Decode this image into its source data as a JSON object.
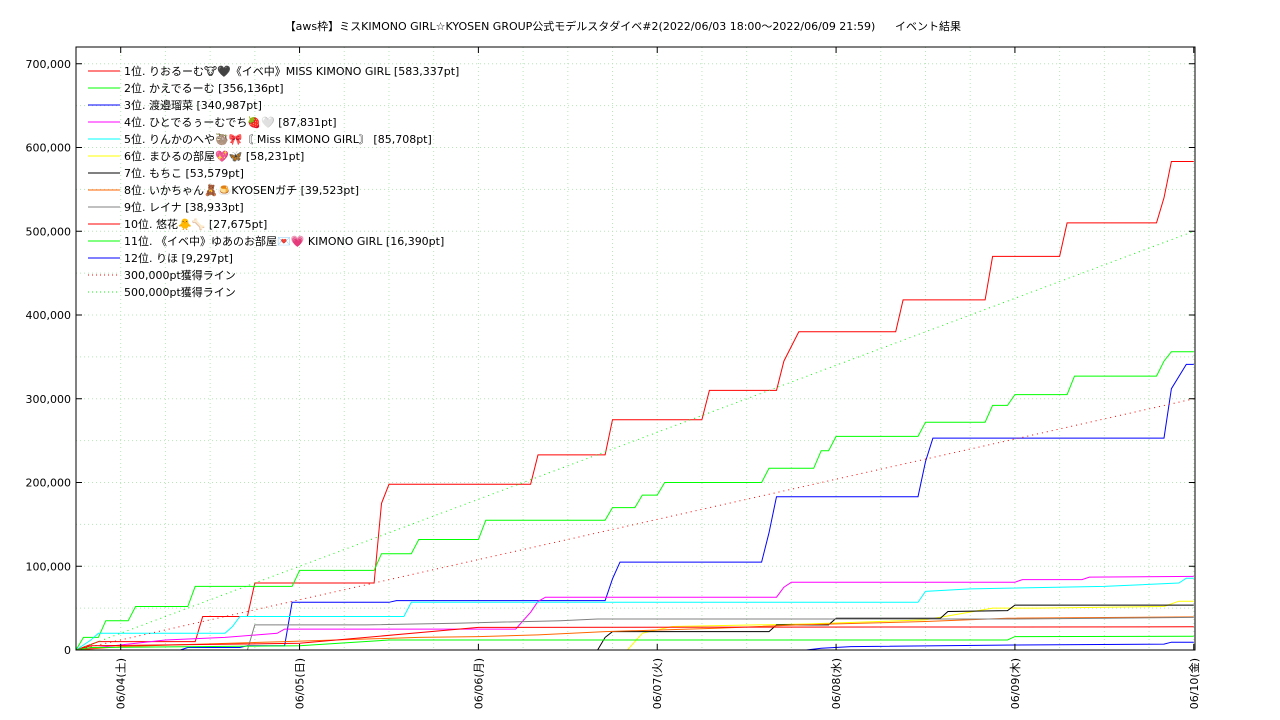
{
  "chart_data": {
    "type": "line",
    "title": "【aws枠】ミスKIMONO GIRL☆KYOSEN GROUP公式モデルスタダイベ#2(2022/06/03 18:00〜2022/06/09 21:59)",
    "subtitle": "イベント結果",
    "xlabel": "",
    "ylabel": "",
    "ylim": [
      0,
      720000
    ],
    "xlim": [
      "2022-06-03 18:00",
      "2022-06-10 00:10"
    ],
    "grid": true,
    "legend_position": "top-left",
    "y_ticks": [
      {
        "value": 0,
        "label": "0"
      },
      {
        "value": 100000,
        "label": "100,000"
      },
      {
        "value": 200000,
        "label": "200,000"
      },
      {
        "value": 300000,
        "label": "300,000"
      },
      {
        "value": 400000,
        "label": "400,000"
      },
      {
        "value": 500000,
        "label": "500,000"
      },
      {
        "value": 600000,
        "label": "600,000"
      },
      {
        "value": 700000,
        "label": "700,000"
      }
    ],
    "x_ticks": [
      {
        "value": "2022-06-04 00:00",
        "label": "06/04(土)"
      },
      {
        "value": "2022-06-05 00:00",
        "label": "06/05(日)"
      },
      {
        "value": "2022-06-06 00:00",
        "label": "06/06(月)"
      },
      {
        "value": "2022-06-07 00:00",
        "label": "06/07(火)"
      },
      {
        "value": "2022-06-08 00:00",
        "label": "06/08(水)"
      },
      {
        "value": "2022-06-09 00:00",
        "label": "06/09(木)"
      },
      {
        "value": "2022-06-10 00:00",
        "label": "06/10(金)"
      }
    ],
    "series": [
      {
        "name": "1位. りおるーむ🐮🖤《イベ中》MISS KIMONO GIRL [583,337pt]",
        "color": "#ff0000",
        "style": "solid",
        "points": [
          [
            "2022-06-03 18:00",
            0
          ],
          [
            "2022-06-03 21:00",
            10000
          ],
          [
            "2022-06-04 10:00",
            10000
          ],
          [
            "2022-06-04 11:00",
            40000
          ],
          [
            "2022-06-04 17:00",
            40000
          ],
          [
            "2022-06-04 18:00",
            80000
          ],
          [
            "2022-06-05 10:00",
            80000
          ],
          [
            "2022-06-05 11:00",
            175000
          ],
          [
            "2022-06-05 12:00",
            198000
          ],
          [
            "2022-06-06 07:00",
            198000
          ],
          [
            "2022-06-06 08:00",
            233000
          ],
          [
            "2022-06-06 17:00",
            233000
          ],
          [
            "2022-06-06 18:00",
            275000
          ],
          [
            "2022-06-07 06:00",
            275000
          ],
          [
            "2022-06-07 07:00",
            310000
          ],
          [
            "2022-06-07 16:00",
            310000
          ],
          [
            "2022-06-07 17:00",
            345000
          ],
          [
            "2022-06-07 19:00",
            380000
          ],
          [
            "2022-06-08 08:00",
            380000
          ],
          [
            "2022-06-08 09:00",
            418000
          ],
          [
            "2022-06-08 20:00",
            418000
          ],
          [
            "2022-06-08 21:00",
            470000
          ],
          [
            "2022-06-09 06:00",
            470000
          ],
          [
            "2022-06-09 07:00",
            510000
          ],
          [
            "2022-06-09 19:00",
            510000
          ],
          [
            "2022-06-09 20:00",
            540000
          ],
          [
            "2022-06-09 21:00",
            583337
          ],
          [
            "2022-06-10 00:00",
            583337
          ]
        ]
      },
      {
        "name": "2位. かえでるーむ [356,136pt]",
        "color": "#00ff00",
        "style": "solid",
        "points": [
          [
            "2022-06-03 18:00",
            0
          ],
          [
            "2022-06-03 19:00",
            15000
          ],
          [
            "2022-06-03 21:00",
            15000
          ],
          [
            "2022-06-03 22:00",
            35000
          ],
          [
            "2022-06-04 01:00",
            35000
          ],
          [
            "2022-06-04 02:00",
            52000
          ],
          [
            "2022-06-04 09:00",
            52000
          ],
          [
            "2022-06-04 10:00",
            76000
          ],
          [
            "2022-06-04 23:00",
            76000
          ],
          [
            "2022-06-05 00:00",
            95000
          ],
          [
            "2022-06-05 10:00",
            95000
          ],
          [
            "2022-06-05 11:00",
            115000
          ],
          [
            "2022-06-05 15:00",
            115000
          ],
          [
            "2022-06-05 16:00",
            132000
          ],
          [
            "2022-06-06 00:00",
            132000
          ],
          [
            "2022-06-06 01:00",
            155000
          ],
          [
            "2022-06-06 17:00",
            155000
          ],
          [
            "2022-06-06 18:00",
            170000
          ],
          [
            "2022-06-06 21:00",
            170000
          ],
          [
            "2022-06-06 22:00",
            185000
          ],
          [
            "2022-06-07 00:00",
            185000
          ],
          [
            "2022-06-07 01:00",
            200000
          ],
          [
            "2022-06-07 14:00",
            200000
          ],
          [
            "2022-06-07 15:00",
            217000
          ],
          [
            "2022-06-07 21:00",
            217000
          ],
          [
            "2022-06-07 22:00",
            238000
          ],
          [
            "2022-06-07 23:00",
            238000
          ],
          [
            "2022-06-08 00:00",
            255000
          ],
          [
            "2022-06-08 11:00",
            255000
          ],
          [
            "2022-06-08 12:00",
            272000
          ],
          [
            "2022-06-08 20:00",
            272000
          ],
          [
            "2022-06-08 21:00",
            292000
          ],
          [
            "2022-06-08 23:00",
            292000
          ],
          [
            "2022-06-09 00:00",
            305000
          ],
          [
            "2022-06-09 07:00",
            305000
          ],
          [
            "2022-06-09 08:00",
            327000
          ],
          [
            "2022-06-09 19:00",
            327000
          ],
          [
            "2022-06-09 20:00",
            345000
          ],
          [
            "2022-06-09 21:00",
            356136
          ],
          [
            "2022-06-10 00:00",
            356136
          ]
        ]
      },
      {
        "name": "3位. 渡邉瑠菜 [340,987pt]",
        "color": "#0000ff",
        "style": "solid",
        "points": [
          [
            "2022-06-03 18:00",
            0
          ],
          [
            "2022-06-04 08:00",
            0
          ],
          [
            "2022-06-04 09:00",
            3000
          ],
          [
            "2022-06-04 16:00",
            3000
          ],
          [
            "2022-06-04 17:00",
            5000
          ],
          [
            "2022-06-04 22:00",
            5000
          ],
          [
            "2022-06-04 23:00",
            57000
          ],
          [
            "2022-06-05 12:00",
            57000
          ],
          [
            "2022-06-05 13:00",
            59000
          ],
          [
            "2022-06-06 17:00",
            59000
          ],
          [
            "2022-06-06 18:00",
            85000
          ],
          [
            "2022-06-06 19:00",
            105000
          ],
          [
            "2022-06-07 14:00",
            105000
          ],
          [
            "2022-06-07 15:00",
            140000
          ],
          [
            "2022-06-07 16:00",
            183000
          ],
          [
            "2022-06-08 11:00",
            183000
          ],
          [
            "2022-06-08 12:00",
            225000
          ],
          [
            "2022-06-08 13:00",
            253000
          ],
          [
            "2022-06-09 20:00",
            253000
          ],
          [
            "2022-06-09 21:00",
            312000
          ],
          [
            "2022-06-09 23:00",
            340987
          ],
          [
            "2022-06-10 00:00",
            340987
          ]
        ]
      },
      {
        "name": "4位. ひとでるぅーむでち🍓🤍 [87,831pt]",
        "color": "#ff00ff",
        "style": "solid",
        "points": [
          [
            "2022-06-03 18:00",
            0
          ],
          [
            "2022-06-04 01:00",
            7000
          ],
          [
            "2022-06-04 06:00",
            12000
          ],
          [
            "2022-06-04 14:00",
            15000
          ],
          [
            "2022-06-04 21:00",
            20000
          ],
          [
            "2022-06-04 22:00",
            25000
          ],
          [
            "2022-06-06 05:00",
            25000
          ],
          [
            "2022-06-06 06:00",
            35000
          ],
          [
            "2022-06-06 07:00",
            45000
          ],
          [
            "2022-06-06 08:00",
            58000
          ],
          [
            "2022-06-06 09:00",
            63000
          ],
          [
            "2022-06-07 16:00",
            63000
          ],
          [
            "2022-06-07 17:00",
            75000
          ],
          [
            "2022-06-07 18:00",
            81000
          ],
          [
            "2022-06-09 00:00",
            81000
          ],
          [
            "2022-06-09 01:00",
            84000
          ],
          [
            "2022-06-09 09:00",
            84000
          ],
          [
            "2022-06-09 10:00",
            87000
          ],
          [
            "2022-06-10 00:00",
            87831
          ]
        ]
      },
      {
        "name": "5位. りんかのへや🦥🎀〘 Miss KIMONO GIRL〙 [85,708pt]",
        "color": "#00ffff",
        "style": "solid",
        "points": [
          [
            "2022-06-03 18:00",
            0
          ],
          [
            "2022-06-03 20:00",
            12000
          ],
          [
            "2022-06-03 21:00",
            20000
          ],
          [
            "2022-06-04 14:00",
            20000
          ],
          [
            "2022-06-04 15:00",
            28000
          ],
          [
            "2022-06-04 16:00",
            40000
          ],
          [
            "2022-06-05 14:00",
            40000
          ],
          [
            "2022-06-05 15:00",
            57000
          ],
          [
            "2022-06-08 11:00",
            57000
          ],
          [
            "2022-06-08 12:00",
            70000
          ],
          [
            "2022-06-08 18:00",
            73000
          ],
          [
            "2022-06-09 12:00",
            76000
          ],
          [
            "2022-06-09 22:00",
            80000
          ],
          [
            "2022-06-09 23:00",
            85708
          ],
          [
            "2022-06-10 00:00",
            85708
          ]
        ]
      },
      {
        "name": "6位. まひるの部屋💖🦋 [58,231pt]",
        "color": "#ffff00",
        "style": "solid",
        "points": [
          [
            "2022-06-03 18:00",
            0
          ],
          [
            "2022-06-06 20:00",
            0
          ],
          [
            "2022-06-06 22:00",
            20000
          ],
          [
            "2022-06-07 02:00",
            28000
          ],
          [
            "2022-06-07 20:00",
            31000
          ],
          [
            "2022-06-08 12:00",
            36000
          ],
          [
            "2022-06-08 21:00",
            50000
          ],
          [
            "2022-06-09 03:00",
            50000
          ],
          [
            "2022-06-09 20:00",
            52000
          ],
          [
            "2022-06-09 22:00",
            58231
          ],
          [
            "2022-06-10 00:00",
            58231
          ]
        ]
      },
      {
        "name": "7位. もちこ [53,579pt]",
        "color": "#000000",
        "style": "solid",
        "points": [
          [
            "2022-06-03 18:00",
            0
          ],
          [
            "2022-06-06 16:00",
            0
          ],
          [
            "2022-06-06 17:00",
            15000
          ],
          [
            "2022-06-06 18:00",
            22000
          ],
          [
            "2022-06-07 15:00",
            22000
          ],
          [
            "2022-06-07 16:00",
            30000
          ],
          [
            "2022-06-07 23:00",
            30000
          ],
          [
            "2022-06-08 00:00",
            38000
          ],
          [
            "2022-06-08 14:00",
            38000
          ],
          [
            "2022-06-08 15:00",
            46000
          ],
          [
            "2022-06-08 23:00",
            47000
          ],
          [
            "2022-06-09 00:00",
            53579
          ],
          [
            "2022-06-10 00:00",
            53579
          ]
        ]
      },
      {
        "name": "8位. いかちゃん🧸🍮KYOSENガチ [39,523pt]",
        "color": "#ff6600",
        "style": "solid",
        "points": [
          [
            "2022-06-03 18:00",
            0
          ],
          [
            "2022-06-04 00:00",
            4000
          ],
          [
            "2022-06-04 22:00",
            10000
          ],
          [
            "2022-06-05 16:00",
            15000
          ],
          [
            "2022-06-06 00:00",
            16000
          ],
          [
            "2022-06-06 08:00",
            18000
          ],
          [
            "2022-06-06 17:00",
            22000
          ],
          [
            "2022-06-07 08:00",
            26000
          ],
          [
            "2022-06-07 19:00",
            30000
          ],
          [
            "2022-06-08 12:00",
            34000
          ],
          [
            "2022-06-08 23:00",
            38000
          ],
          [
            "2022-06-10 00:00",
            39523
          ]
        ]
      },
      {
        "name": "9位. レイナ [38,933pt]",
        "color": "#808080",
        "style": "solid",
        "points": [
          [
            "2022-06-03 18:00",
            0
          ],
          [
            "2022-06-04 17:00",
            0
          ],
          [
            "2022-06-04 18:00",
            30000
          ],
          [
            "2022-06-05 09:00",
            30000
          ],
          [
            "2022-06-05 21:00",
            32000
          ],
          [
            "2022-06-06 11:00",
            35000
          ],
          [
            "2022-06-06 16:00",
            37000
          ],
          [
            "2022-06-09 00:00",
            37000
          ],
          [
            "2022-06-09 12:00",
            38000
          ],
          [
            "2022-06-10 00:00",
            38933
          ]
        ]
      },
      {
        "name": "10位. 悠花🐥🦴 [27,675pt]",
        "color": "#ff0000",
        "style": "solid",
        "points": [
          [
            "2022-06-03 18:00",
            0
          ],
          [
            "2022-06-03 20:00",
            5000
          ],
          [
            "2022-06-05 00:00",
            8000
          ],
          [
            "2022-06-06 00:00",
            27000
          ],
          [
            "2022-06-10 00:00",
            27675
          ]
        ]
      },
      {
        "name": "11位. 《イベ中》ゆあのお部屋💌💗 KIMONO GIRL [16,390pt]",
        "color": "#00ff00",
        "style": "solid",
        "points": [
          [
            "2022-06-03 18:00",
            0
          ],
          [
            "2022-06-03 20:00",
            3000
          ],
          [
            "2022-06-05 00:00",
            5000
          ],
          [
            "2022-06-05 12:00",
            12000
          ],
          [
            "2022-06-08 23:00",
            12000
          ],
          [
            "2022-06-09 00:00",
            16000
          ],
          [
            "2022-06-10 00:00",
            16390
          ]
        ]
      },
      {
        "name": "12位. りほ [9,297pt]",
        "color": "#0000ff",
        "style": "solid",
        "points": [
          [
            "2022-06-03 18:00",
            0
          ],
          [
            "2022-06-07 20:00",
            0
          ],
          [
            "2022-06-07 22:00",
            2000
          ],
          [
            "2022-06-08 02:00",
            4000
          ],
          [
            "2022-06-09 00:00",
            6000
          ],
          [
            "2022-06-09 20:00",
            7000
          ],
          [
            "2022-06-09 21:00",
            9297
          ],
          [
            "2022-06-10 00:00",
            9297
          ]
        ]
      },
      {
        "name": "300,000pt獲得ライン",
        "color": "#ff0000",
        "style": "dotted",
        "points": [
          [
            "2022-06-03 18:00",
            0
          ],
          [
            "2022-06-10 00:00",
            300000
          ]
        ]
      },
      {
        "name": "500,000pt獲得ライン",
        "color": "#00ff00",
        "style": "dotted",
        "points": [
          [
            "2022-06-03 18:00",
            0
          ],
          [
            "2022-06-10 00:00",
            500000
          ]
        ]
      }
    ]
  }
}
